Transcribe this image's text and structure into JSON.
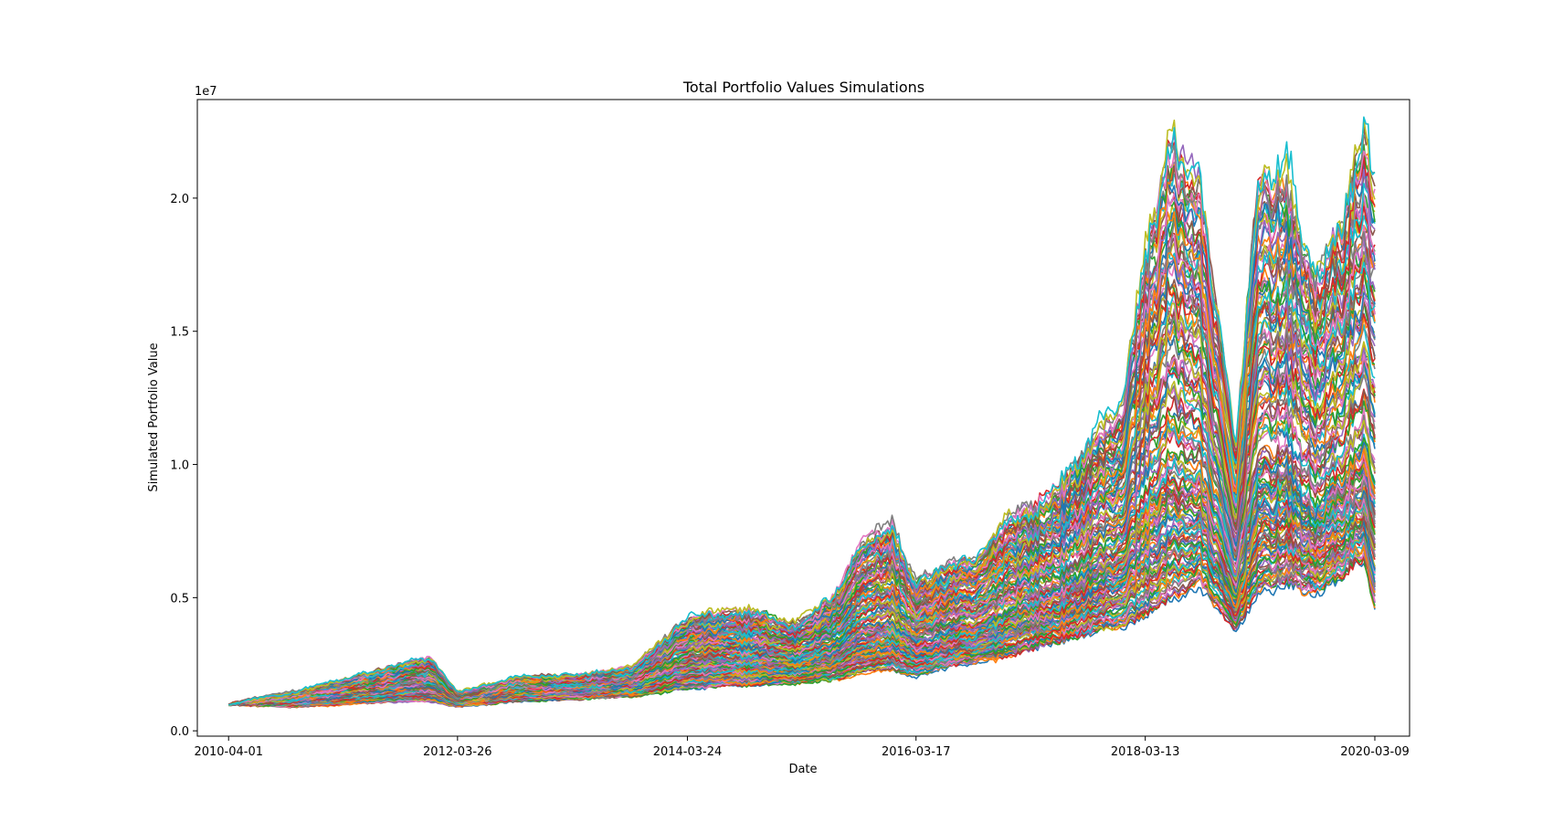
{
  "chart_data": {
    "type": "line",
    "title": "Total Portfolio Values Simulations",
    "xlabel": "Date",
    "ylabel": "Simulated Portfolio Value",
    "y_offset_text": "1e7",
    "ylim": [
      -0.02,
      2.37
    ],
    "yticks": [
      0.0,
      0.5,
      1.0,
      1.5,
      2.0
    ],
    "ytick_labels": [
      "0.0",
      "0.5",
      "1.0",
      "1.5",
      "2.0"
    ],
    "y_scale_note": "values in units of 1e7",
    "xlim": [
      "2009-12-23",
      "2020-06-27"
    ],
    "xticks": [
      "2010-04-01",
      "2012-03-26",
      "2014-03-24",
      "2016-03-17",
      "2018-03-13",
      "2020-03-09"
    ],
    "grid": false,
    "legend": "none",
    "simulation_count_shown": 500,
    "series_colors": [
      "#1f77b4",
      "#ff7f0e",
      "#2ca02c",
      "#d62728",
      "#9467bd",
      "#8c564b",
      "#e377c2",
      "#7f7f7f",
      "#bcbd22",
      "#17becf"
    ],
    "series": [
      {
        "name": "",
        "role": "upper envelope",
        "x": [
          "2010-04-01",
          "2010-10-01",
          "2011-04-01",
          "2011-10-01",
          "2012-01-02",
          "2012-03-26",
          "2012-10-01",
          "2013-04-01",
          "2013-10-01",
          "2014-03-24",
          "2014-10-01",
          "2015-03-01",
          "2015-07-01",
          "2015-10-01",
          "2016-01-01",
          "2016-03-17",
          "2016-07-01",
          "2016-10-01",
          "2017-01-01",
          "2017-04-01",
          "2017-07-01",
          "2017-10-01",
          "2018-01-01",
          "2018-03-13",
          "2018-06-01",
          "2018-09-01",
          "2018-12-24",
          "2019-03-01",
          "2019-06-01",
          "2019-09-01",
          "2019-12-01",
          "2020-02-01",
          "2020-03-09"
        ],
        "values": [
          0.1,
          0.14,
          0.19,
          0.25,
          0.27,
          0.14,
          0.2,
          0.21,
          0.24,
          0.42,
          0.45,
          0.4,
          0.5,
          0.72,
          0.77,
          0.55,
          0.63,
          0.65,
          0.8,
          0.85,
          0.95,
          1.1,
          1.2,
          1.8,
          2.22,
          2.05,
          1.05,
          2.05,
          2.1,
          1.7,
          1.95,
          2.24,
          2.08
        ]
      },
      {
        "name": "",
        "role": "median path",
        "x": [
          "2010-04-01",
          "2010-10-01",
          "2011-04-01",
          "2011-10-01",
          "2012-01-02",
          "2012-03-26",
          "2012-10-01",
          "2013-04-01",
          "2013-10-01",
          "2014-03-24",
          "2014-10-01",
          "2015-03-01",
          "2015-07-01",
          "2015-10-01",
          "2016-01-01",
          "2016-03-17",
          "2016-07-01",
          "2016-10-01",
          "2017-01-01",
          "2017-04-01",
          "2017-07-01",
          "2017-10-01",
          "2018-01-01",
          "2018-03-13",
          "2018-06-01",
          "2018-09-01",
          "2018-12-24",
          "2019-03-01",
          "2019-06-01",
          "2019-09-01",
          "2019-12-01",
          "2020-02-01",
          "2020-03-09"
        ],
        "values": [
          0.1,
          0.12,
          0.15,
          0.18,
          0.19,
          0.12,
          0.16,
          0.17,
          0.19,
          0.28,
          0.29,
          0.27,
          0.31,
          0.4,
          0.42,
          0.34,
          0.38,
          0.39,
          0.46,
          0.5,
          0.55,
          0.62,
          0.67,
          0.88,
          1.02,
          0.98,
          0.58,
          0.98,
          1.0,
          0.85,
          0.95,
          1.08,
          0.92
        ]
      },
      {
        "name": "",
        "role": "lower envelope",
        "x": [
          "2010-04-01",
          "2010-10-01",
          "2011-04-01",
          "2011-10-01",
          "2012-01-02",
          "2012-03-26",
          "2012-10-01",
          "2013-04-01",
          "2013-10-01",
          "2014-03-24",
          "2014-10-01",
          "2015-03-01",
          "2015-07-01",
          "2015-10-01",
          "2016-01-01",
          "2016-03-17",
          "2016-07-01",
          "2016-10-01",
          "2017-01-01",
          "2017-04-01",
          "2017-07-01",
          "2017-10-01",
          "2018-01-01",
          "2018-03-13",
          "2018-06-01",
          "2018-09-01",
          "2018-12-24",
          "2019-03-01",
          "2019-06-01",
          "2019-09-01",
          "2019-12-01",
          "2020-02-01",
          "2020-03-09"
        ],
        "values": [
          0.1,
          0.09,
          0.1,
          0.11,
          0.11,
          0.09,
          0.11,
          0.12,
          0.13,
          0.16,
          0.17,
          0.18,
          0.19,
          0.22,
          0.23,
          0.21,
          0.24,
          0.26,
          0.28,
          0.31,
          0.34,
          0.37,
          0.39,
          0.43,
          0.5,
          0.55,
          0.38,
          0.52,
          0.55,
          0.52,
          0.58,
          0.65,
          0.47
        ]
      }
    ]
  }
}
